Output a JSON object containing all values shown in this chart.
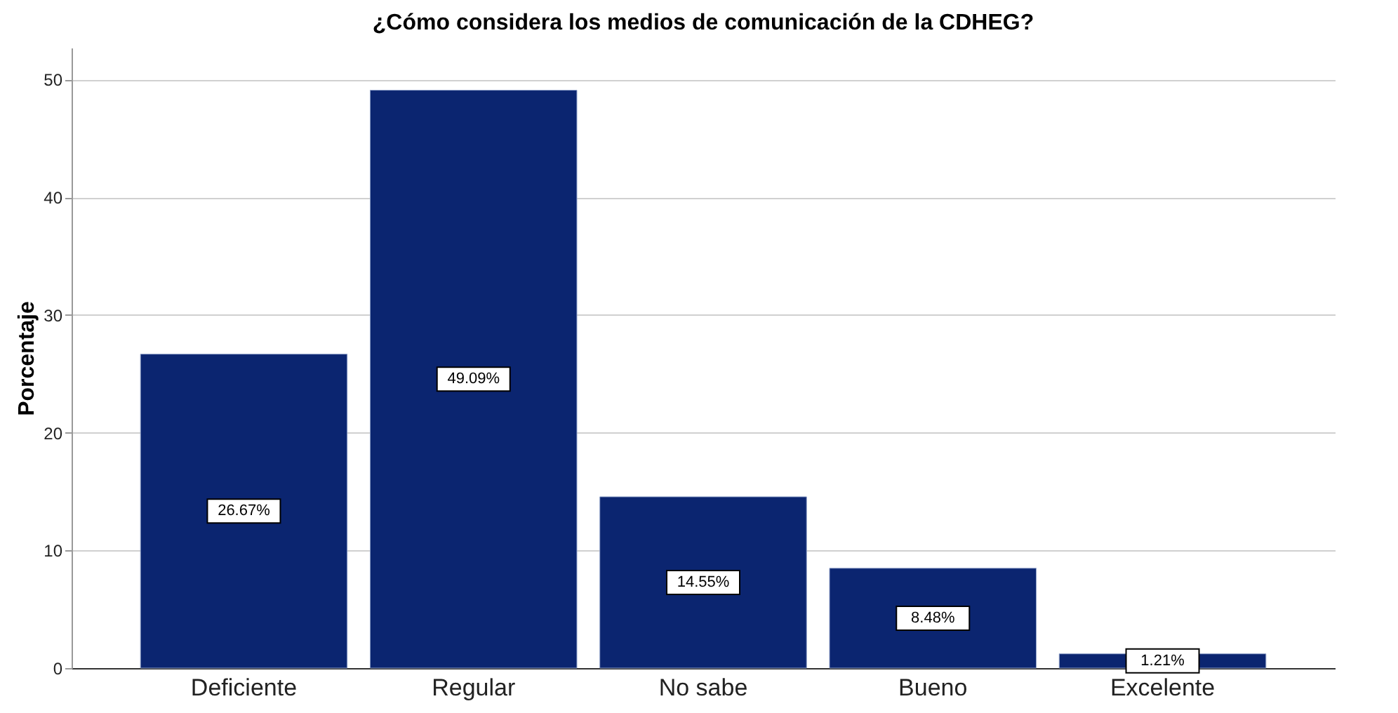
{
  "chart_data": {
    "type": "bar",
    "title": "¿Cómo considera los medios de comunicación de la CDHEG?",
    "ylabel": "Porcentaje",
    "categories": [
      "Deficiente",
      "Regular",
      "No sabe",
      "Bueno",
      "Excelente"
    ],
    "values": [
      26.67,
      49.09,
      14.55,
      8.48,
      1.21
    ],
    "value_labels": [
      "26.67%",
      "49.09%",
      "14.55%",
      "8.48%",
      "1.21%"
    ],
    "color": "#0b2570",
    "ylim": [
      0,
      52.7
    ],
    "yticks": [
      0,
      10,
      20,
      30,
      40,
      50
    ],
    "grid": "y"
  }
}
